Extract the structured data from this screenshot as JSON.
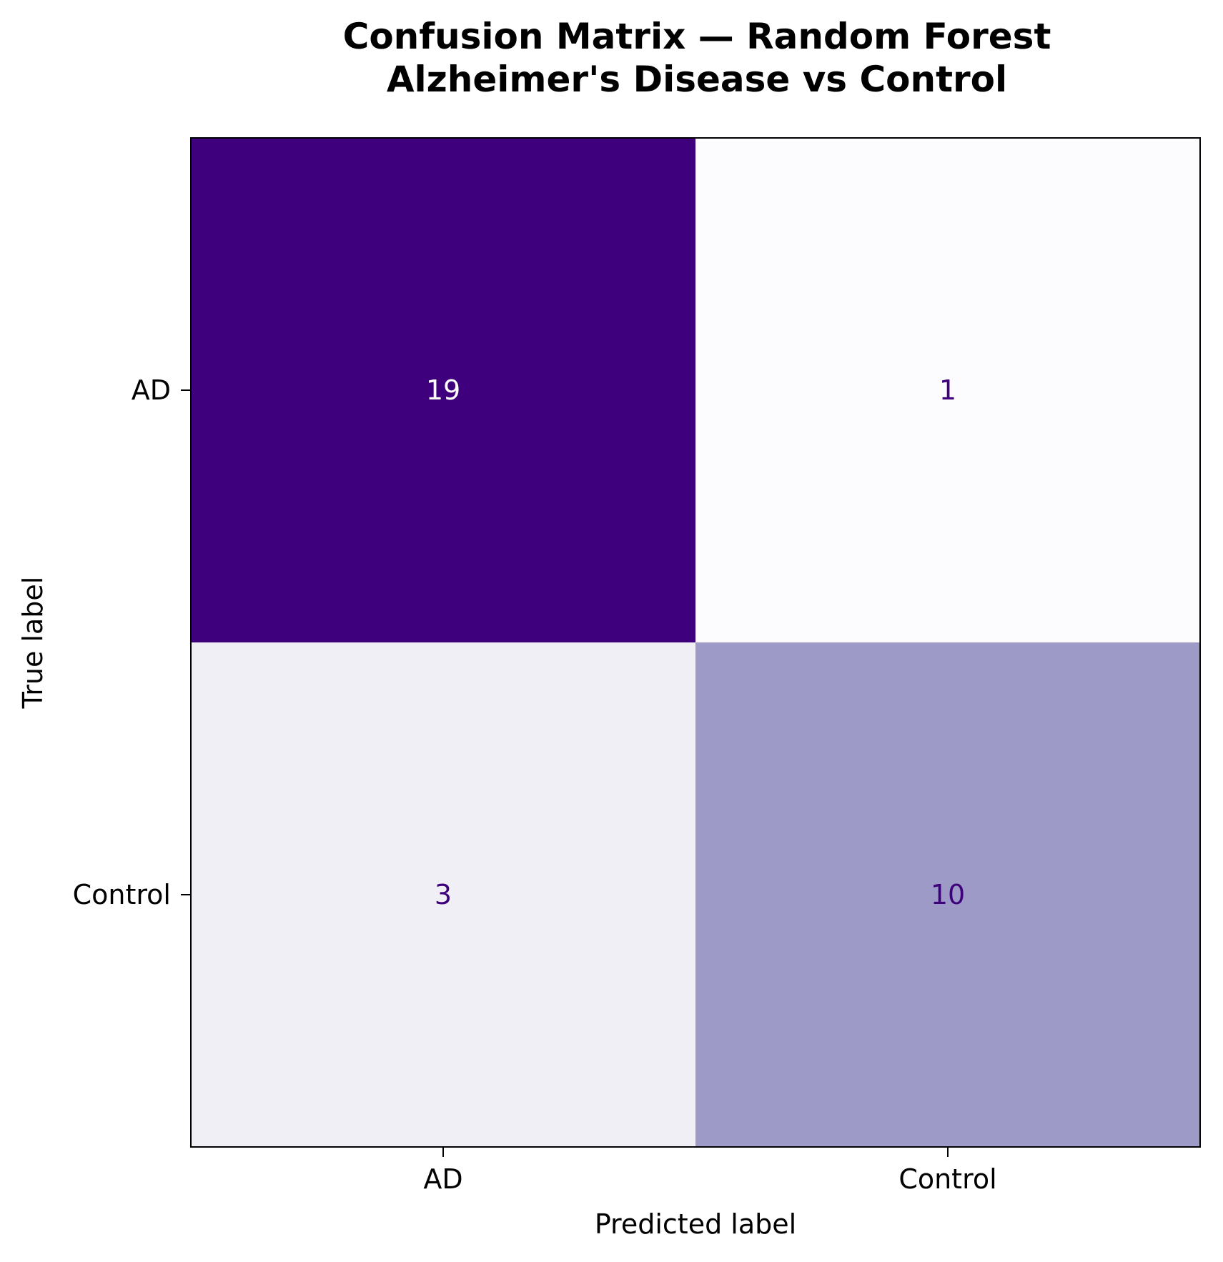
{
  "chart_data": {
    "type": "heatmap",
    "title_lines": [
      "Confusion Matrix — Random Forest",
      "Alzheimer's Disease vs Control"
    ],
    "xlabel": "Predicted label",
    "ylabel": "True label",
    "x_categories": [
      "AD",
      "Control"
    ],
    "y_categories": [
      "AD",
      "Control"
    ],
    "values": [
      [
        19,
        1
      ],
      [
        3,
        10
      ]
    ],
    "value_range": [
      1,
      19
    ],
    "colormap": "Purples",
    "colorbar": false,
    "grid": false,
    "colors": {
      "high_cell": "#3f007d",
      "mid_cell": "#9e9ac8",
      "low_cell": "#efedf5",
      "min_cell": "#fcfbfd",
      "text_on_dark": "#ffffff",
      "text_on_light": "#3f007d"
    }
  }
}
